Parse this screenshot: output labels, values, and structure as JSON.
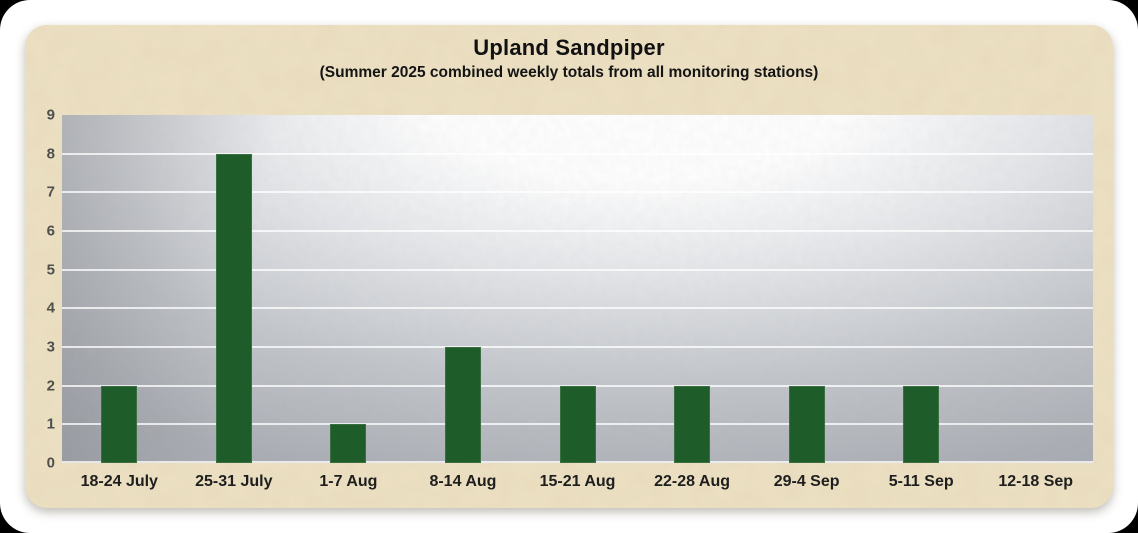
{
  "chart_data": {
    "type": "bar",
    "title": "Upland Sandpiper",
    "subtitle": "(Summer 2025 combined weekly totals from all monitoring stations)",
    "categories": [
      "18-24 July",
      "25-31 July",
      "1-7 Aug",
      "8-14 Aug",
      "15-21 Aug",
      "22-28 Aug",
      "29-4 Sep",
      "5-11 Sep",
      "12-18 Sep"
    ],
    "values": [
      2,
      8,
      1,
      3,
      2,
      2,
      2,
      2,
      0
    ],
    "xlabel": "",
    "ylabel": "",
    "ylim": [
      0,
      9
    ],
    "ytick_step": 1,
    "grid": true,
    "legend": false,
    "colors": {
      "bar": "#1e5c29",
      "panel_background": "#ece0c4",
      "plot_gray": "#a0a3a9",
      "gridline": "rgba(255,255,255,0.75)",
      "title_text": "#111111",
      "y_tick_text": "#4f4f4c",
      "x_tick_text": "#1e1e1e"
    }
  }
}
